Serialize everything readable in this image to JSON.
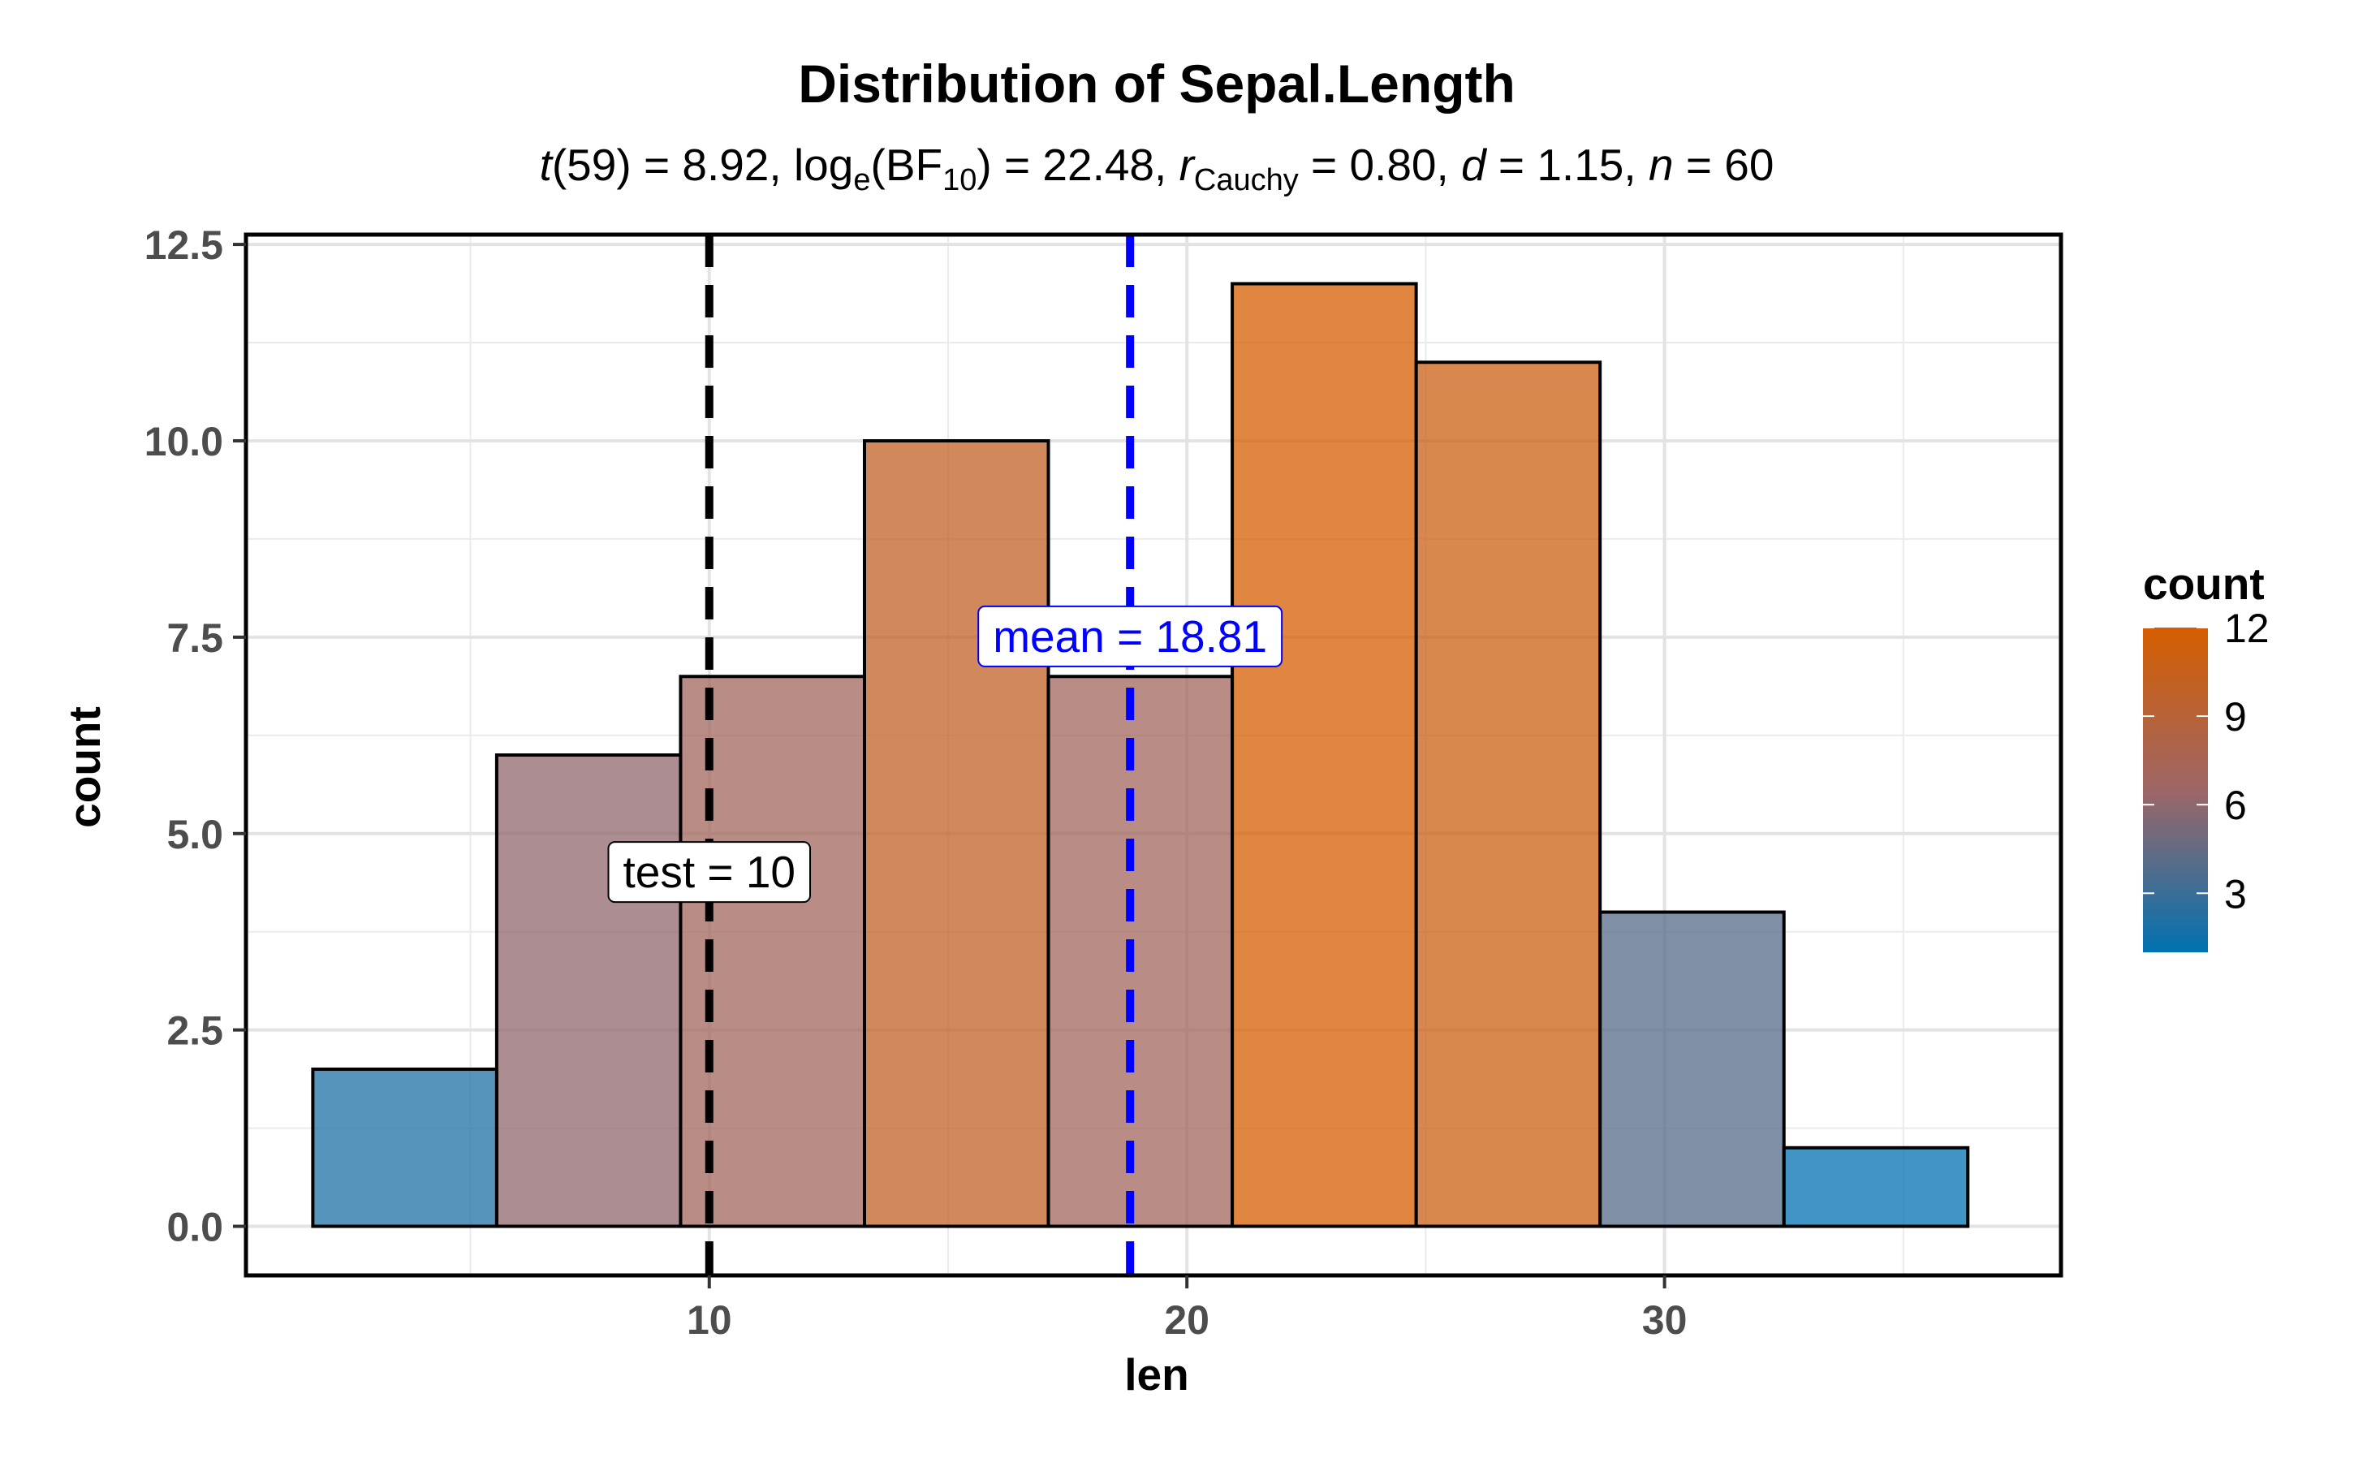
{
  "chart_data": {
    "type": "bar",
    "title": "Distribution of Sepal.Length",
    "subtitle": {
      "t_symbol": "t",
      "df": "(59)",
      "t_value": " = 8.92, log",
      "log_sub": "e",
      "bf_open": "(BF",
      "bf_sub": "10",
      "bf_value": ") = 22.48, ",
      "r_symbol": "r",
      "r_sub": "Cauchy",
      "r_value": " = 0.80, ",
      "d_symbol": "d",
      "d_value": " = 1.15, ",
      "n_symbol": "n",
      "n_value": " = 60"
    },
    "xlabel": "len",
    "ylabel": "count",
    "xlim": [
      0.3,
      38.3
    ],
    "ylim": [
      -0.625,
      12.625
    ],
    "x_ticks": [
      10,
      20,
      30
    ],
    "x_minor_ticks": [
      5,
      15,
      25,
      35
    ],
    "y_ticks": [
      0,
      2.5,
      5,
      7.5,
      10,
      12.5
    ],
    "y_tick_labels": [
      "0.0",
      "2.5",
      "5.0",
      "7.5",
      "10.0",
      "12.5"
    ],
    "y_minor_ticks": [
      1.25,
      3.75,
      6.25,
      8.75,
      11.25
    ],
    "grid": true,
    "bins": [
      {
        "x0": 1.7,
        "x1": 5.55,
        "count": 2
      },
      {
        "x0": 5.55,
        "x1": 9.4,
        "count": 6
      },
      {
        "x0": 9.4,
        "x1": 13.25,
        "count": 7
      },
      {
        "x0": 13.25,
        "x1": 17.1,
        "count": 10
      },
      {
        "x0": 17.1,
        "x1": 20.95,
        "count": 7
      },
      {
        "x0": 20.95,
        "x1": 24.8,
        "count": 12
      },
      {
        "x0": 24.8,
        "x1": 28.65,
        "count": 11
      },
      {
        "x0": 28.65,
        "x1": 32.5,
        "count": 4
      },
      {
        "x0": 32.5,
        "x1": 36.35,
        "count": 1
      }
    ],
    "test_line": {
      "x": 10,
      "label": "test = 10",
      "color": "#000000",
      "label_y": 4.5
    },
    "mean_line": {
      "x": 18.81,
      "label": "mean = 18.81",
      "color": "#0000ff",
      "label_y": 7.5
    },
    "fill_scale": {
      "low": "#0072B2",
      "mid": "#9E6666",
      "high": "#D55E00",
      "min": 1,
      "max": 12
    },
    "legend": {
      "title": "count",
      "position": "right",
      "breaks": [
        12,
        9,
        6,
        3
      ],
      "labels": [
        "12",
        "9",
        "6",
        "3"
      ]
    }
  }
}
